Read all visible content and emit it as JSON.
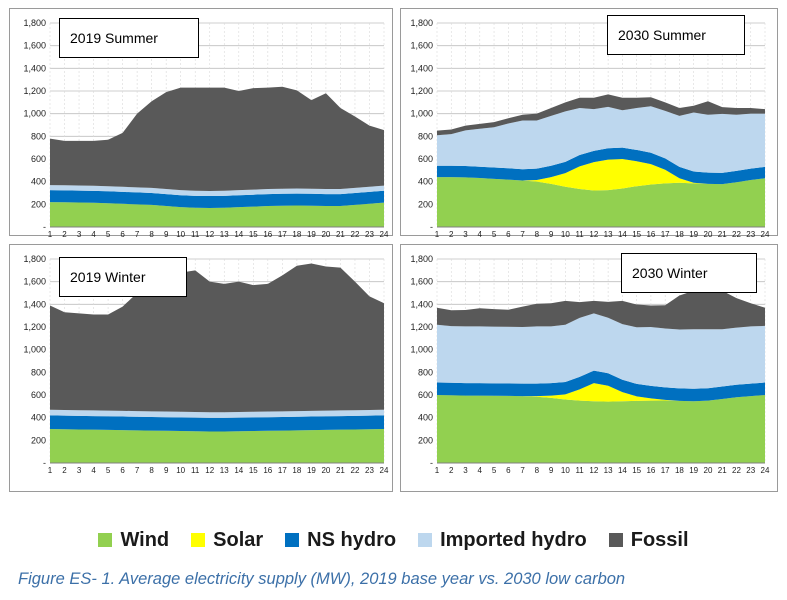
{
  "caption": "Figure ES- 1. Average electricity supply (MW), 2019 base year vs. 2030 low carbon",
  "legend": [
    {
      "name": "Wind",
      "color": "#92d050"
    },
    {
      "name": "Solar",
      "color": "#ffff00"
    },
    {
      "name": "NS hydro",
      "color": "#0070c0"
    },
    {
      "name": "Imported hydro",
      "color": "#bdd7ee"
    },
    {
      "name": "Fossil",
      "color": "#595959"
    }
  ],
  "chart_data": [
    {
      "type": "area",
      "title": "2019 Summer",
      "x": [
        1,
        2,
        3,
        4,
        5,
        6,
        7,
        8,
        9,
        10,
        11,
        12,
        13,
        14,
        15,
        16,
        17,
        18,
        19,
        20,
        21,
        22,
        23,
        24
      ],
      "ylim": [
        0,
        1800
      ],
      "yticks": [
        "-",
        "200",
        "400",
        "600",
        "800",
        "1,000",
        "1,200",
        "1,400",
        "1,600",
        "1,800"
      ],
      "stacked": true,
      "grid": true,
      "series": [
        {
          "name": "Wind",
          "color": "#92d050",
          "values": [
            220,
            218,
            216,
            214,
            210,
            205,
            200,
            195,
            185,
            175,
            170,
            168,
            170,
            175,
            180,
            185,
            188,
            190,
            188,
            185,
            185,
            195,
            205,
            215
          ]
        },
        {
          "name": "Solar",
          "color": "#ffff00",
          "values": [
            0,
            0,
            0,
            0,
            0,
            0,
            0,
            0,
            0,
            0,
            0,
            0,
            0,
            0,
            0,
            0,
            0,
            0,
            0,
            0,
            0,
            0,
            0,
            0
          ]
        },
        {
          "name": "NS hydro",
          "color": "#0070c0",
          "values": [
            105,
            105,
            105,
            105,
            105,
            105,
            105,
            105,
            105,
            105,
            105,
            105,
            105,
            105,
            105,
            105,
            105,
            105,
            105,
            105,
            105,
            105,
            105,
            105
          ]
        },
        {
          "name": "Imported hydro",
          "color": "#bdd7ee",
          "values": [
            45,
            45,
            45,
            45,
            45,
            45,
            45,
            45,
            45,
            45,
            45,
            45,
            45,
            45,
            45,
            45,
            45,
            45,
            45,
            45,
            45,
            45,
            45,
            45
          ]
        },
        {
          "name": "Fossil",
          "color": "#595959",
          "values": [
            410,
            392,
            394,
            396,
            410,
            475,
            650,
            765,
            855,
            905,
            910,
            912,
            910,
            875,
            895,
            895,
            900,
            865,
            782,
            845,
            715,
            630,
            540,
            490
          ]
        }
      ]
    },
    {
      "type": "area",
      "title": "2030 Summer",
      "x": [
        1,
        2,
        3,
        4,
        5,
        6,
        7,
        8,
        9,
        10,
        11,
        12,
        13,
        14,
        15,
        16,
        17,
        18,
        19,
        20,
        21,
        22,
        23,
        24
      ],
      "ylim": [
        0,
        1800
      ],
      "yticks": [
        "-",
        "200",
        "400",
        "600",
        "800",
        "1,000",
        "1,200",
        "1,400",
        "1,600",
        "1,800"
      ],
      "stacked": true,
      "grid": true,
      "series": [
        {
          "name": "Wind",
          "color": "#92d050",
          "values": [
            440,
            440,
            438,
            432,
            425,
            418,
            410,
            400,
            380,
            355,
            335,
            322,
            325,
            340,
            360,
            375,
            385,
            390,
            385,
            380,
            378,
            395,
            415,
            430
          ]
        },
        {
          "name": "Solar",
          "color": "#ffff00",
          "values": [
            0,
            0,
            0,
            0,
            0,
            0,
            0,
            15,
            60,
            120,
            200,
            250,
            270,
            260,
            220,
            180,
            120,
            40,
            5,
            0,
            0,
            0,
            0,
            0
          ]
        },
        {
          "name": "NS hydro",
          "color": "#0070c0",
          "values": [
            100,
            100,
            100,
            100,
            100,
            100,
            100,
            100,
            100,
            100,
            100,
            100,
            100,
            100,
            100,
            100,
            100,
            100,
            100,
            100,
            100,
            100,
            100,
            100
          ]
        },
        {
          "name": "Imported hydro",
          "color": "#bdd7ee",
          "values": [
            270,
            280,
            315,
            335,
            355,
            395,
            430,
            425,
            440,
            445,
            415,
            368,
            365,
            330,
            370,
            410,
            420,
            450,
            520,
            510,
            520,
            495,
            485,
            470
          ]
        },
        {
          "name": "Fossil",
          "color": "#595959",
          "values": [
            40,
            40,
            42,
            43,
            45,
            47,
            50,
            60,
            70,
            80,
            90,
            100,
            110,
            110,
            90,
            80,
            75,
            70,
            60,
            120,
            60,
            60,
            50,
            40
          ]
        }
      ]
    },
    {
      "type": "area",
      "title": "2019 Winter",
      "x": [
        1,
        2,
        3,
        4,
        5,
        6,
        7,
        8,
        9,
        10,
        11,
        12,
        13,
        14,
        15,
        16,
        17,
        18,
        19,
        20,
        21,
        22,
        23,
        24
      ],
      "ylim": [
        0,
        1800
      ],
      "yticks": [
        "-",
        "200",
        "400",
        "600",
        "800",
        "1,000",
        "1,200",
        "1,400",
        "1,600",
        "1,800"
      ],
      "stacked": true,
      "grid": true,
      "series": [
        {
          "name": "Wind",
          "color": "#92d050",
          "values": [
            300,
            298,
            296,
            294,
            292,
            290,
            288,
            286,
            284,
            282,
            280,
            278,
            278,
            280,
            282,
            284,
            286,
            288,
            290,
            292,
            294,
            296,
            298,
            300
          ]
        },
        {
          "name": "Solar",
          "color": "#ffff00",
          "values": [
            0,
            0,
            0,
            0,
            0,
            0,
            0,
            0,
            0,
            0,
            0,
            0,
            0,
            0,
            0,
            0,
            0,
            0,
            0,
            0,
            0,
            0,
            0,
            0
          ]
        },
        {
          "name": "NS hydro",
          "color": "#0070c0",
          "values": [
            120,
            120,
            120,
            120,
            120,
            120,
            120,
            120,
            120,
            120,
            120,
            120,
            120,
            120,
            120,
            120,
            120,
            120,
            120,
            120,
            120,
            120,
            120,
            120
          ]
        },
        {
          "name": "Imported hydro",
          "color": "#bdd7ee",
          "values": [
            50,
            50,
            50,
            50,
            50,
            50,
            50,
            50,
            50,
            50,
            50,
            50,
            50,
            50,
            50,
            50,
            50,
            50,
            50,
            50,
            50,
            50,
            50,
            50
          ]
        },
        {
          "name": "Fossil",
          "color": "#595959",
          "values": [
            920,
            862,
            854,
            846,
            848,
            920,
            1042,
            1144,
            1206,
            1228,
            1250,
            1152,
            1132,
            1150,
            1118,
            1126,
            1200,
            1282,
            1300,
            1272,
            1260,
            1134,
            1002,
            940
          ]
        }
      ]
    },
    {
      "type": "area",
      "title": "2030 Winter",
      "x": [
        1,
        2,
        3,
        4,
        5,
        6,
        7,
        8,
        9,
        10,
        11,
        12,
        13,
        14,
        15,
        16,
        17,
        18,
        19,
        20,
        21,
        22,
        23,
        24
      ],
      "ylim": [
        0,
        1800
      ],
      "yticks": [
        "-",
        "200",
        "400",
        "600",
        "800",
        "1,000",
        "1,200",
        "1,400",
        "1,600",
        "1,800"
      ],
      "stacked": true,
      "grid": true,
      "series": [
        {
          "name": "Wind",
          "color": "#92d050",
          "values": [
            600,
            598,
            595,
            595,
            593,
            592,
            590,
            585,
            575,
            560,
            550,
            545,
            542,
            545,
            548,
            550,
            552,
            548,
            545,
            550,
            565,
            580,
            590,
            600
          ]
        },
        {
          "name": "Solar",
          "color": "#ffff00",
          "values": [
            0,
            0,
            0,
            0,
            0,
            0,
            0,
            5,
            20,
            45,
            100,
            160,
            140,
            80,
            40,
            20,
            5,
            0,
            0,
            0,
            0,
            0,
            0,
            0
          ]
        },
        {
          "name": "NS hydro",
          "color": "#0070c0",
          "values": [
            110,
            110,
            110,
            110,
            110,
            110,
            110,
            110,
            110,
            110,
            110,
            110,
            110,
            110,
            110,
            110,
            110,
            110,
            110,
            110,
            110,
            110,
            110,
            110
          ]
        },
        {
          "name": "Imported hydro",
          "color": "#bdd7ee",
          "values": [
            510,
            500,
            500,
            500,
            500,
            500,
            500,
            505,
            500,
            505,
            520,
            505,
            490,
            490,
            500,
            520,
            520,
            520,
            525,
            520,
            505,
            505,
            505,
            500
          ]
        },
        {
          "name": "Fossil",
          "color": "#595959",
          "values": [
            150,
            140,
            145,
            160,
            155,
            150,
            180,
            200,
            205,
            210,
            140,
            110,
            140,
            205,
            200,
            190,
            205,
            300,
            340,
            340,
            340,
            260,
            205,
            160
          ]
        }
      ]
    }
  ]
}
